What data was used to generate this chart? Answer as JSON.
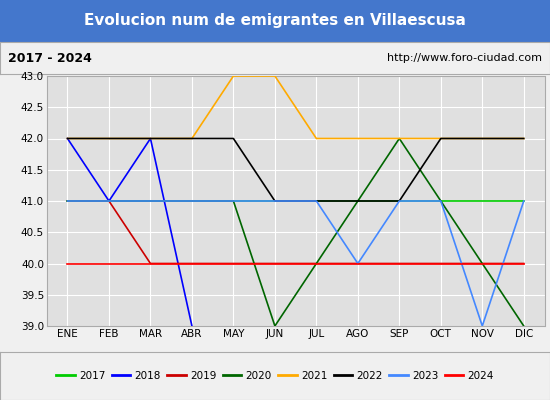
{
  "title": "Evolucion num de emigrantes en Villaescusa",
  "subtitle_left": "2017 - 2024",
  "subtitle_right": "http://www.foro-ciudad.com",
  "months": [
    "ENE",
    "FEB",
    "MAR",
    "ABR",
    "MAY",
    "JUN",
    "JUL",
    "AGO",
    "SEP",
    "OCT",
    "NOV",
    "DIC"
  ],
  "x_values": [
    1,
    2,
    3,
    4,
    5,
    6,
    7,
    8,
    9,
    10,
    11,
    12
  ],
  "ylim": [
    39.0,
    43.0
  ],
  "yticks": [
    39.0,
    39.5,
    40.0,
    40.5,
    41.0,
    41.5,
    42.0,
    42.5,
    43.0
  ],
  "series": {
    "2017": {
      "color": "#00cc00",
      "x": [
        1,
        12
      ],
      "y": [
        41.0,
        41.0
      ]
    },
    "2018": {
      "color": "#0000ff",
      "x": [
        1,
        2,
        3,
        4
      ],
      "y": [
        42.0,
        41.0,
        42.0,
        39.0
      ]
    },
    "2019": {
      "color": "#cc0000",
      "x": [
        1,
        2,
        3,
        12
      ],
      "y": [
        41.0,
        41.0,
        40.0,
        40.0
      ]
    },
    "2020": {
      "color": "#006600",
      "x": [
        1,
        5,
        6,
        7,
        8,
        9,
        12
      ],
      "y": [
        41.0,
        41.0,
        39.0,
        40.0,
        41.0,
        42.0,
        39.0
      ]
    },
    "2021": {
      "color": "#ffaa00",
      "x": [
        1,
        4,
        5,
        6,
        7,
        12
      ],
      "y": [
        42.0,
        42.0,
        43.0,
        43.0,
        42.0,
        42.0
      ]
    },
    "2022": {
      "color": "#000000",
      "x": [
        1,
        4,
        5,
        6,
        7,
        8,
        9,
        10,
        12
      ],
      "y": [
        42.0,
        42.0,
        42.0,
        41.0,
        41.0,
        41.0,
        41.0,
        42.0,
        42.0
      ]
    },
    "2023": {
      "color": "#4488ff",
      "x": [
        1,
        7,
        8,
        9,
        10,
        11,
        12
      ],
      "y": [
        41.0,
        41.0,
        40.0,
        41.0,
        41.0,
        39.0,
        41.0
      ]
    },
    "2024": {
      "color": "#ff0000",
      "x": [
        1,
        12
      ],
      "y": [
        40.0,
        40.0
      ]
    }
  },
  "title_bg_color": "#4477cc",
  "title_text_color": "#ffffff",
  "plot_bg_color": "#e0e0e0",
  "grid_color": "#ffffff",
  "sub_bg_color": "#f0f0f0",
  "legend_bg_color": "#f0f0f0",
  "border_color": "#aaaaaa"
}
